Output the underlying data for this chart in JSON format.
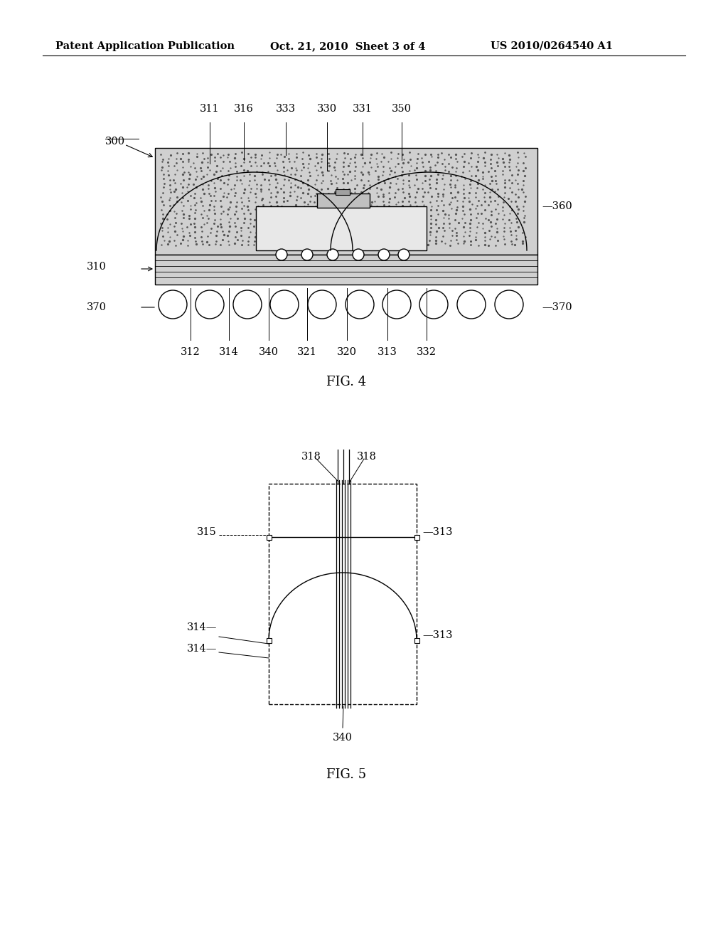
{
  "bg_color": "#ffffff",
  "line_color": "#000000",
  "header_text": "Patent Application Publication",
  "header_date": "Oct. 21, 2010  Sheet 3 of 4",
  "header_patent": "US 2010/0264540 A1",
  "fig4_caption": "FIG. 4",
  "fig5_caption": "FIG. 5",
  "mold_color": "#c8c8c8",
  "substrate_color": "#b0b0b0",
  "chip_color": "#ffffff",
  "speckle_color": "#555555"
}
